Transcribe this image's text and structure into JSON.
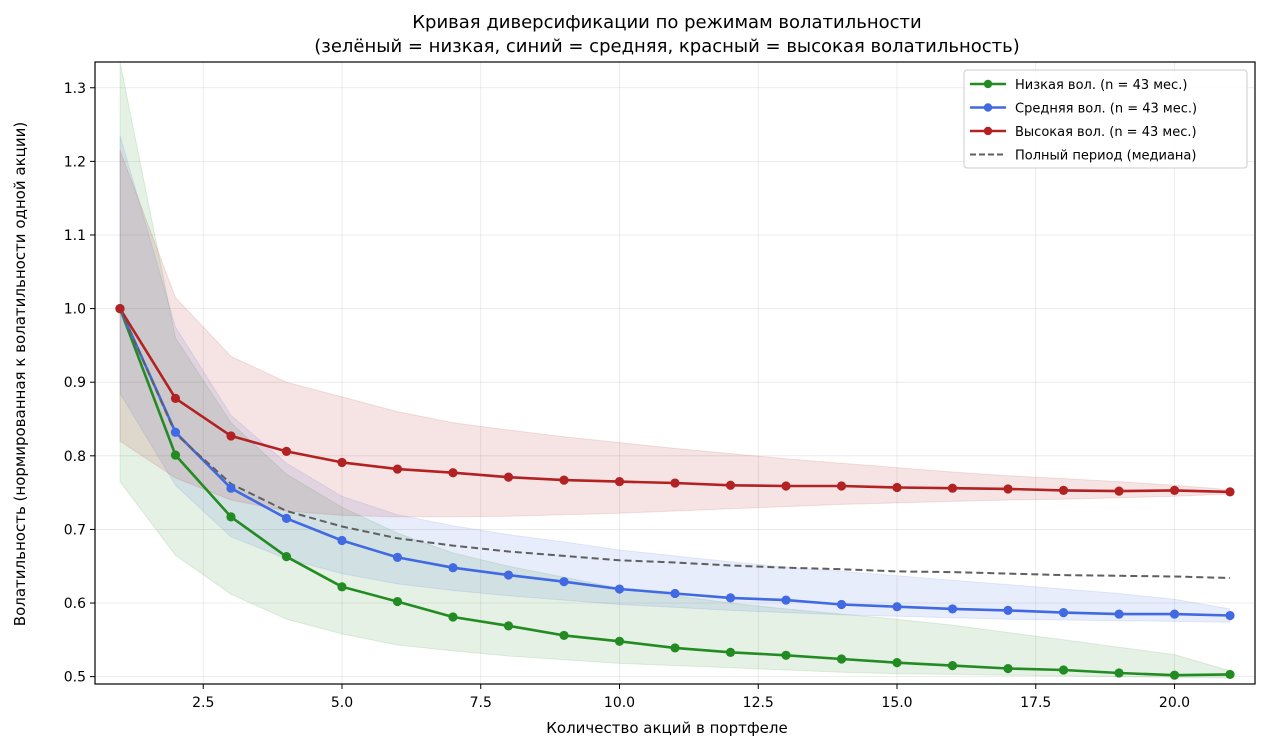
{
  "chart_data": {
    "type": "line",
    "title": "Кривая диверсификации по режимам волатильности",
    "subtitle": "(зелёный = низкая, синий = средняя, красный = высокая волатильность)",
    "xlabel": "Количество акций в портфеле",
    "ylabel": "Волатильность (нормированная к волатильности одной акции)",
    "xlim": [
      0.55,
      21.45
    ],
    "ylim": [
      0.49,
      1.335
    ],
    "xticks": [
      2.5,
      5.0,
      7.5,
      10.0,
      12.5,
      15.0,
      17.5,
      20.0
    ],
    "xtick_labels": [
      "2.5",
      "5.0",
      "7.5",
      "10.0",
      "12.5",
      "15.0",
      "17.5",
      "20.0"
    ],
    "yticks": [
      0.5,
      0.6,
      0.7,
      0.8,
      0.9,
      1.0,
      1.1,
      1.2,
      1.3
    ],
    "ytick_labels": [
      "0.5",
      "0.6",
      "0.7",
      "0.8",
      "0.9",
      "1.0",
      "1.1",
      "1.2",
      "1.3"
    ],
    "grid": true,
    "legend_position": "top-right",
    "x": [
      1,
      2,
      3,
      4,
      5,
      6,
      7,
      8,
      9,
      10,
      11,
      12,
      13,
      14,
      15,
      16,
      17,
      18,
      19,
      20,
      21
    ],
    "series": [
      {
        "name": "Низкая вол. (n = 43 мес.)",
        "color": "#228b22",
        "style": "solid-marker",
        "values": [
          1.0,
          0.801,
          0.717,
          0.663,
          0.622,
          0.602,
          0.581,
          0.569,
          0.556,
          0.548,
          0.539,
          0.533,
          0.529,
          0.524,
          0.519,
          0.515,
          0.511,
          0.509,
          0.505,
          0.502,
          0.503
        ],
        "band_lower": [
          0.765,
          0.665,
          0.612,
          0.578,
          0.558,
          0.543,
          0.535,
          0.528,
          0.523,
          0.518,
          0.515,
          0.512,
          0.509,
          0.506,
          0.504,
          0.503,
          0.502,
          0.501,
          0.5,
          0.499,
          0.498
        ],
        "band_upper": [
          1.335,
          0.96,
          0.845,
          0.775,
          0.73,
          0.695,
          0.668,
          0.65,
          0.635,
          0.62,
          0.61,
          0.6,
          0.592,
          0.585,
          0.578,
          0.57,
          0.56,
          0.55,
          0.54,
          0.53,
          0.508
        ]
      },
      {
        "name": "Средняя вол. (n = 43 мес.)",
        "color": "#4169e1",
        "style": "solid-marker",
        "values": [
          1.0,
          0.832,
          0.756,
          0.715,
          0.685,
          0.662,
          0.648,
          0.638,
          0.629,
          0.619,
          0.613,
          0.607,
          0.604,
          0.598,
          0.595,
          0.592,
          0.59,
          0.587,
          0.585,
          0.585,
          0.583
        ],
        "band_lower": [
          0.885,
          0.76,
          0.69,
          0.66,
          0.64,
          0.626,
          0.617,
          0.61,
          0.604,
          0.598,
          0.594,
          0.59,
          0.587,
          0.584,
          0.582,
          0.58,
          0.578,
          0.577,
          0.576,
          0.575,
          0.574
        ],
        "band_upper": [
          1.235,
          0.975,
          0.855,
          0.79,
          0.745,
          0.72,
          0.705,
          0.693,
          0.683,
          0.672,
          0.664,
          0.656,
          0.649,
          0.643,
          0.637,
          0.631,
          0.625,
          0.619,
          0.613,
          0.605,
          0.592
        ]
      },
      {
        "name": "Высокая вол. (n = 43 мес.)",
        "color": "#b22222",
        "style": "solid-marker",
        "values": [
          1.0,
          0.878,
          0.827,
          0.806,
          0.791,
          0.782,
          0.777,
          0.771,
          0.767,
          0.765,
          0.763,
          0.76,
          0.759,
          0.759,
          0.757,
          0.756,
          0.755,
          0.753,
          0.752,
          0.753,
          0.751
        ],
        "band_lower": [
          0.82,
          0.77,
          0.74,
          0.725,
          0.719,
          0.717,
          0.717,
          0.718,
          0.72,
          0.722,
          0.725,
          0.728,
          0.731,
          0.734,
          0.736,
          0.738,
          0.74,
          0.741,
          0.743,
          0.745,
          0.748
        ],
        "band_upper": [
          1.215,
          1.015,
          0.935,
          0.9,
          0.88,
          0.86,
          0.845,
          0.835,
          0.826,
          0.818,
          0.81,
          0.803,
          0.796,
          0.79,
          0.784,
          0.778,
          0.773,
          0.769,
          0.765,
          0.76,
          0.754
        ]
      },
      {
        "name": "Полный период (медиана)",
        "color": "#5f5f5f",
        "style": "dashed",
        "values": [
          1.0,
          0.83,
          0.762,
          0.725,
          0.704,
          0.688,
          0.678,
          0.67,
          0.664,
          0.658,
          0.655,
          0.651,
          0.648,
          0.646,
          0.643,
          0.642,
          0.64,
          0.638,
          0.637,
          0.636,
          0.634
        ]
      }
    ]
  }
}
